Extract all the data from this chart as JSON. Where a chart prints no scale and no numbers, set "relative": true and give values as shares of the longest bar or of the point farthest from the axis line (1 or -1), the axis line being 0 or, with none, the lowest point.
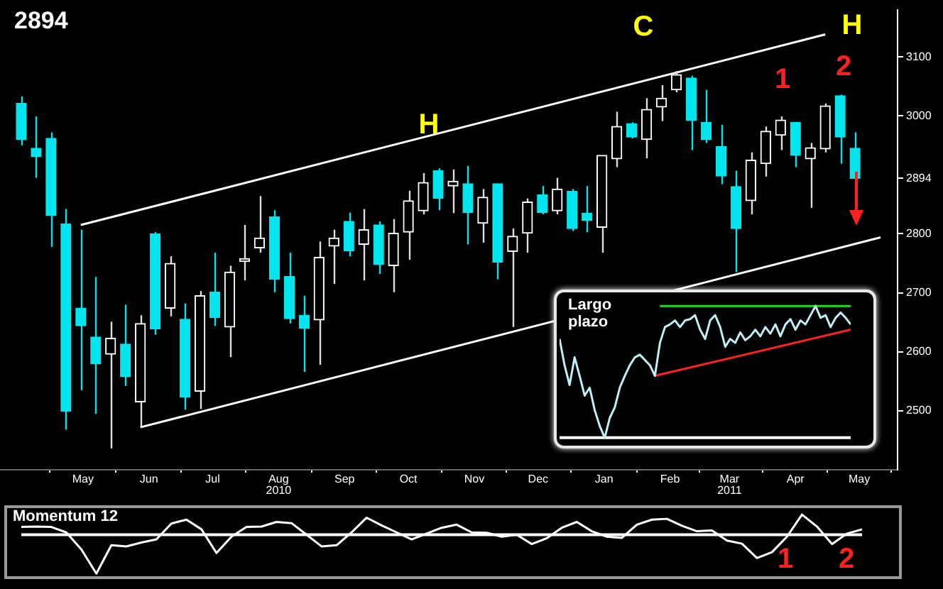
{
  "chart_data": [
    {
      "type": "candlestick",
      "title": "2894",
      "x": [
        "2010-04-16",
        "2010-04-23",
        "2010-04-30",
        "2010-05-07",
        "2010-05-14",
        "2010-05-21",
        "2010-05-28",
        "2010-06-04",
        "2010-06-11",
        "2010-06-18",
        "2010-06-25",
        "2010-07-02",
        "2010-07-09",
        "2010-07-16",
        "2010-07-23",
        "2010-07-30",
        "2010-08-06",
        "2010-08-13",
        "2010-08-20",
        "2010-08-27",
        "2010-09-03",
        "2010-09-10",
        "2010-09-17",
        "2010-09-24",
        "2010-10-01",
        "2010-10-08",
        "2010-10-15",
        "2010-10-22",
        "2010-10-29",
        "2010-11-05",
        "2010-11-12",
        "2010-11-19",
        "2010-11-26",
        "2010-12-03",
        "2010-12-10",
        "2010-12-17",
        "2010-12-24",
        "2010-12-31",
        "2011-01-07",
        "2011-01-14",
        "2011-01-21",
        "2011-01-28",
        "2011-02-04",
        "2011-02-11",
        "2011-02-18",
        "2011-02-25",
        "2011-03-04",
        "2011-03-11",
        "2011-03-18",
        "2011-03-25",
        "2011-04-01",
        "2011-04-08",
        "2011-04-15",
        "2011-04-22",
        "2011-04-29",
        "2011-05-06",
        "2011-05-13"
      ],
      "ohlc": [
        [
          3021,
          3033,
          2950,
          2960
        ],
        [
          2945,
          2999,
          2895,
          2931
        ],
        [
          2962,
          2972,
          2778,
          2831
        ],
        [
          2817,
          2842,
          2468,
          2499
        ],
        [
          2674,
          2807,
          2535,
          2644
        ],
        [
          2625,
          2727,
          2495,
          2580
        ],
        [
          2596,
          2651,
          2436,
          2623
        ],
        [
          2613,
          2680,
          2542,
          2558
        ],
        [
          2515,
          2662,
          2472,
          2648
        ],
        [
          2800,
          2803,
          2629,
          2639
        ],
        [
          2674,
          2762,
          2660,
          2750
        ],
        [
          2655,
          2682,
          2502,
          2523
        ],
        [
          2533,
          2703,
          2503,
          2695
        ],
        [
          2701,
          2768,
          2644,
          2658
        ],
        [
          2642,
          2746,
          2591,
          2735
        ],
        [
          2753,
          2815,
          2721,
          2758
        ],
        [
          2776,
          2864,
          2768,
          2793
        ],
        [
          2829,
          2840,
          2701,
          2723
        ],
        [
          2728,
          2768,
          2648,
          2656
        ],
        [
          2662,
          2695,
          2566,
          2640
        ],
        [
          2654,
          2787,
          2578,
          2760
        ],
        [
          2779,
          2807,
          2715,
          2793
        ],
        [
          2821,
          2836,
          2762,
          2771
        ],
        [
          2782,
          2842,
          2721,
          2807
        ],
        [
          2815,
          2821,
          2732,
          2748
        ],
        [
          2746,
          2825,
          2701,
          2801
        ],
        [
          2803,
          2873,
          2756,
          2856
        ],
        [
          2839,
          2903,
          2833,
          2887
        ],
        [
          2907,
          2911,
          2840,
          2860
        ],
        [
          2881,
          2909,
          2835,
          2889
        ],
        [
          2885,
          2915,
          2782,
          2836
        ],
        [
          2818,
          2876,
          2785,
          2862
        ],
        [
          2885,
          2885,
          2723,
          2752
        ],
        [
          2770,
          2809,
          2642,
          2796
        ],
        [
          2801,
          2860,
          2768,
          2854
        ],
        [
          2866,
          2881,
          2833,
          2836
        ],
        [
          2839,
          2895,
          2833,
          2876
        ],
        [
          2872,
          2876,
          2805,
          2809
        ],
        [
          2835,
          2881,
          2803,
          2823
        ],
        [
          2811,
          2933,
          2768,
          2933
        ],
        [
          2927,
          3007,
          2913,
          2982
        ],
        [
          2987,
          2989,
          2962,
          2964
        ],
        [
          2960,
          3030,
          2928,
          3011
        ],
        [
          3015,
          3052,
          2991,
          3030
        ],
        [
          3044,
          3076,
          3040,
          3070
        ],
        [
          3064,
          3068,
          2942,
          2992
        ],
        [
          2989,
          3044,
          2954,
          2960
        ],
        [
          2948,
          2985,
          2884,
          2898
        ],
        [
          2880,
          2907,
          2735,
          2809
        ],
        [
          2856,
          2938,
          2833,
          2925
        ],
        [
          2919,
          2982,
          2897,
          2974
        ],
        [
          2967,
          2999,
          2942,
          2993
        ],
        [
          2989,
          2989,
          2913,
          2933
        ],
        [
          2927,
          2954,
          2844,
          2946
        ],
        [
          2944,
          3021,
          2938,
          3017
        ],
        [
          3034,
          3036,
          2919,
          2964
        ],
        [
          2945,
          2972,
          2890,
          2894
        ]
      ],
      "xlim": [
        "2010-04-06",
        "2011-06-02"
      ],
      "ylim": [
        2400,
        3180
      ],
      "xticks": [
        {
          "value": "2010-05-15",
          "label": "May"
        },
        {
          "value": "2010-06-15",
          "label": "Jun"
        },
        {
          "value": "2010-07-15",
          "label": "Jul"
        },
        {
          "value": "2010-08-15",
          "label": "Aug\n2010"
        },
        {
          "value": "2010-09-15",
          "label": "Sep"
        },
        {
          "value": "2010-10-15",
          "label": "Oct"
        },
        {
          "value": "2010-11-15",
          "label": "Nov"
        },
        {
          "value": "2010-12-15",
          "label": "Dec"
        },
        {
          "value": "2011-01-15",
          "label": "Jan"
        },
        {
          "value": "2011-02-15",
          "label": "Feb"
        },
        {
          "value": "2011-03-15",
          "label": "Mar\n2011"
        },
        {
          "value": "2011-04-15",
          "label": "Apr"
        },
        {
          "value": "2011-05-15",
          "label": "May"
        }
      ],
      "yticks": [
        3100,
        3000,
        2894,
        2800,
        2700,
        2600,
        2500
      ],
      "series": [
        {
          "type": "line",
          "color": "#ffffff",
          "x": [
            "2010-05-14",
            "2011-04-29"
          ],
          "values": [
            2815,
            3138
          ]
        },
        {
          "type": "line",
          "color": "#ffffff",
          "x": [
            "2010-06-11",
            "2011-05-25"
          ],
          "values": [
            2472,
            2794
          ]
        }
      ],
      "annotations": [
        "H",
        "C",
        "H",
        "1",
        "2"
      ]
    },
    {
      "type": "line",
      "title": "Largo plazo",
      "relative": true,
      "categories": [
        null,
        null,
        null,
        null,
        null,
        null,
        null,
        null,
        null,
        null,
        null,
        null,
        null,
        null,
        null,
        null,
        null,
        null,
        null,
        null,
        null,
        null,
        null,
        null,
        null,
        null,
        null,
        null,
        null,
        null,
        null,
        null,
        null,
        null,
        null,
        null,
        null,
        null,
        null,
        null,
        null,
        null,
        null,
        null,
        null,
        null,
        null,
        null,
        null,
        null,
        null,
        null,
        null,
        null,
        null,
        null,
        null,
        null,
        null
      ],
      "series": [
        {
          "type": "line",
          "color": "#bfeff5",
          "values": [
            0.75,
            0.55,
            0.4,
            0.61,
            0.47,
            0.32,
            0.38,
            0.21,
            0.09,
            0,
            0.15,
            0.23,
            0.38,
            0.47,
            0.55,
            0.61,
            0.63,
            0.59,
            0.55,
            0.47,
            0.72,
            0.84,
            0.86,
            0.89,
            0.84,
            0.89,
            0.9,
            0.93,
            0.82,
            0.75,
            0.89,
            0.93,
            0.84,
            0.69,
            0.75,
            0.72,
            0.8,
            0.74,
            0.77,
            0.82,
            0.77,
            0.84,
            0.79,
            0.86,
            0.77,
            0.86,
            0.9,
            0.82,
            0.89,
            0.86,
            0.93,
            1,
            0.91,
            0.93,
            0.84,
            0.91,
            0.95,
            0.91,
            0.86
          ]
        },
        {
          "type": "line",
          "color": "#ff2020",
          "values": [
            null,
            null,
            null,
            null,
            null,
            null,
            null,
            null,
            null,
            null,
            null,
            null,
            null,
            null,
            null,
            null,
            null,
            null,
            null,
            0.47,
            null,
            null,
            null,
            null,
            null,
            null,
            null,
            null,
            null,
            null,
            null,
            null,
            null,
            null,
            null,
            null,
            null,
            null,
            null,
            null,
            null,
            null,
            null,
            null,
            null,
            null,
            null,
            null,
            null,
            null,
            null,
            null,
            null,
            null,
            null,
            null,
            null,
            null,
            0.82
          ]
        },
        {
          "type": "line",
          "color": "#22dd22",
          "values": [
            null,
            null,
            null,
            null,
            null,
            null,
            null,
            null,
            null,
            null,
            null,
            null,
            null,
            null,
            null,
            null,
            null,
            null,
            null,
            null,
            1,
            null,
            null,
            null,
            null,
            null,
            null,
            null,
            null,
            null,
            null,
            null,
            null,
            null,
            null,
            null,
            null,
            null,
            null,
            null,
            null,
            null,
            null,
            null,
            null,
            null,
            null,
            null,
            null,
            null,
            null,
            null,
            null,
            null,
            null,
            null,
            null,
            null,
            1
          ]
        }
      ]
    },
    {
      "type": "line",
      "title": "Momentum 12",
      "relative": true,
      "categories": [
        null,
        null,
        null,
        null,
        null,
        null,
        null,
        null,
        null,
        null,
        null,
        null,
        null,
        null,
        null,
        null,
        null,
        null,
        null,
        null,
        null,
        null,
        null,
        null,
        null,
        null,
        null,
        null,
        null,
        null,
        null,
        null,
        null,
        null,
        null,
        null,
        null,
        null,
        null,
        null,
        null,
        null,
        null,
        null,
        null,
        null,
        null,
        null,
        null,
        null,
        null,
        null,
        null,
        null,
        null,
        null,
        null
      ],
      "series": [
        {
          "type": "line",
          "color": "#ffffff",
          "values": [
            0.2,
            0.21,
            0.2,
            0.06,
            -0.38,
            -1,
            -0.27,
            -0.3,
            -0.2,
            -0.12,
            0.29,
            0.39,
            0.14,
            -0.47,
            -0.05,
            0.2,
            0.21,
            0.33,
            0.3,
            0,
            -0.3,
            -0.27,
            0.06,
            0.44,
            0.24,
            0.06,
            -0.12,
            0.03,
            0.18,
            0.26,
            0.06,
            0.05,
            -0.05,
            0,
            -0.24,
            -0.09,
            0.18,
            0.33,
            0.09,
            -0.05,
            -0.08,
            0.26,
            0.39,
            0.41,
            0.23,
            0.09,
            0.11,
            -0.15,
            -0.23,
            -0.6,
            -0.45,
            -0.05,
            0.52,
            0.21,
            -0.24,
            0.03,
            0.14
          ]
        }
      ],
      "annotations": [
        "1",
        "2"
      ]
    }
  ]
}
